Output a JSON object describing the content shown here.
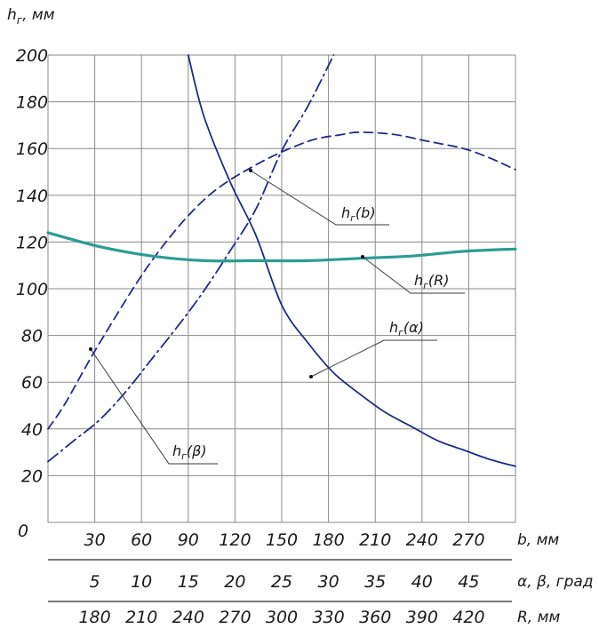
{
  "chart_data": {
    "type": "line",
    "y_axis": {
      "label_main": "h",
      "label_sub": "г",
      "label_unit": ", мм",
      "ticks": [
        "0",
        "20",
        "40",
        "60",
        "80",
        "100",
        "120",
        "140",
        "160",
        "180",
        "200"
      ],
      "range": [
        0,
        200
      ]
    },
    "x_axes": [
      {
        "id": "b",
        "label": "b, мм",
        "ticks": [
          "30",
          "60",
          "90",
          "120",
          "150",
          "180",
          "210",
          "240",
          "270"
        ],
        "range": [
          0,
          270
        ]
      },
      {
        "id": "angle",
        "label": "α, β, град",
        "ticks": [
          "5",
          "10",
          "15",
          "20",
          "25",
          "30",
          "35",
          "40",
          "45"
        ],
        "range": [
          0,
          45
        ]
      },
      {
        "id": "R",
        "label": "R, мм",
        "ticks": [
          "180",
          "210",
          "240",
          "270",
          "300",
          "330",
          "360",
          "390",
          "420"
        ],
        "range": [
          150,
          420
        ]
      }
    ],
    "grid": true,
    "series": [
      {
        "id": "hb",
        "name": "hг(b)",
        "label_main": "h",
        "label_sub": "г",
        "label_arg": "(b)",
        "axis": "b",
        "style": "dashed",
        "color": "#1e2b8a",
        "x": [
          0,
          10,
          30,
          60,
          90,
          120,
          150,
          170,
          180,
          200,
          220,
          240,
          255,
          270
        ],
        "y": [
          40,
          51,
          77,
          112,
          138,
          153,
          163,
          166,
          167,
          166,
          163,
          160,
          156,
          151
        ]
      },
      {
        "id": "hbeta",
        "name": "hг(β)",
        "label_main": "h",
        "label_sub": "г",
        "label_arg": "(β)",
        "axis": "angle",
        "style": "dash-dot",
        "color": "#1e2b8a",
        "x": [
          0,
          2.5,
          5,
          7.5,
          10,
          12.5,
          15,
          17.5,
          20,
          22.5,
          25,
          27.5
        ],
        "y": [
          26,
          35,
          44,
          56,
          70,
          84,
          99,
          116,
          134,
          159,
          178,
          200
        ]
      },
      {
        "id": "halpha",
        "name": "hг(α)",
        "label_main": "h",
        "label_sub": "г",
        "label_arg": "(α)",
        "axis": "angle",
        "style": "solid",
        "color": "#1e2b8a",
        "x": [
          13.5,
          15,
          17.5,
          20,
          22.5,
          25,
          27.5,
          30,
          32.5,
          35,
          37.5,
          40,
          42.5,
          45
        ],
        "y": [
          200,
          174,
          146,
          123,
          93,
          77,
          64,
          55,
          47,
          41,
          35,
          31,
          27,
          24
        ]
      },
      {
        "id": "hR",
        "name": "hг(R)",
        "label_main": "h",
        "label_sub": "г",
        "label_arg": "(R)",
        "axis": "R",
        "style": "solid-thick",
        "color": "#2a9d93",
        "x": [
          150,
          180,
          210,
          240,
          270,
          300,
          330,
          360,
          390,
          420
        ],
        "y": [
          124,
          118,
          114,
          112,
          112,
          112,
          113,
          114,
          116,
          117
        ]
      }
    ],
    "annotations": [
      {
        "series": "hb",
        "text_main": "h",
        "text_sub": "г",
        "text_arg": "(b)"
      },
      {
        "series": "hR",
        "text_main": "h",
        "text_sub": "г",
        "text_arg": "(R)"
      },
      {
        "series": "halpha",
        "text_main": "h",
        "text_sub": "г",
        "text_arg": "(α)"
      },
      {
        "series": "hbeta",
        "text_main": "h",
        "text_sub": "г",
        "text_arg": "(β)"
      }
    ]
  }
}
